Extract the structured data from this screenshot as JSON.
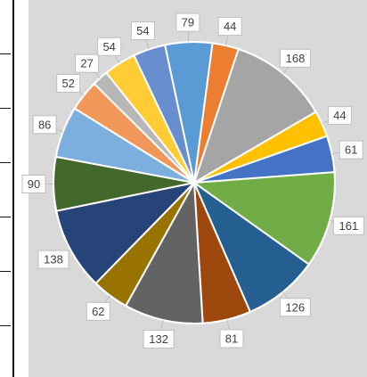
{
  "chart_data": {
    "type": "pie",
    "title": "",
    "values": [
      79,
      44,
      168,
      44,
      61,
      161,
      126,
      81,
      132,
      62,
      138,
      90,
      86,
      52,
      27,
      54,
      54
    ],
    "colors": [
      "#5b9bd5",
      "#ed7d31",
      "#a5a5a5",
      "#ffc000",
      "#4472c4",
      "#70ad47",
      "#255e91",
      "#9e480e",
      "#636363",
      "#997300",
      "#264478",
      "#43682b",
      "#7cafdd",
      "#f1975a",
      "#b7b7b7",
      "#ffcd33",
      "#698ed0"
    ],
    "data_labels": [
      "79",
      "44",
      "168",
      "44",
      "61",
      "161",
      "126",
      "81",
      "132",
      "62",
      "138",
      "90",
      "86",
      "52",
      "27",
      "54",
      "54"
    ],
    "start_angle_deg": -12,
    "legend": "none"
  }
}
